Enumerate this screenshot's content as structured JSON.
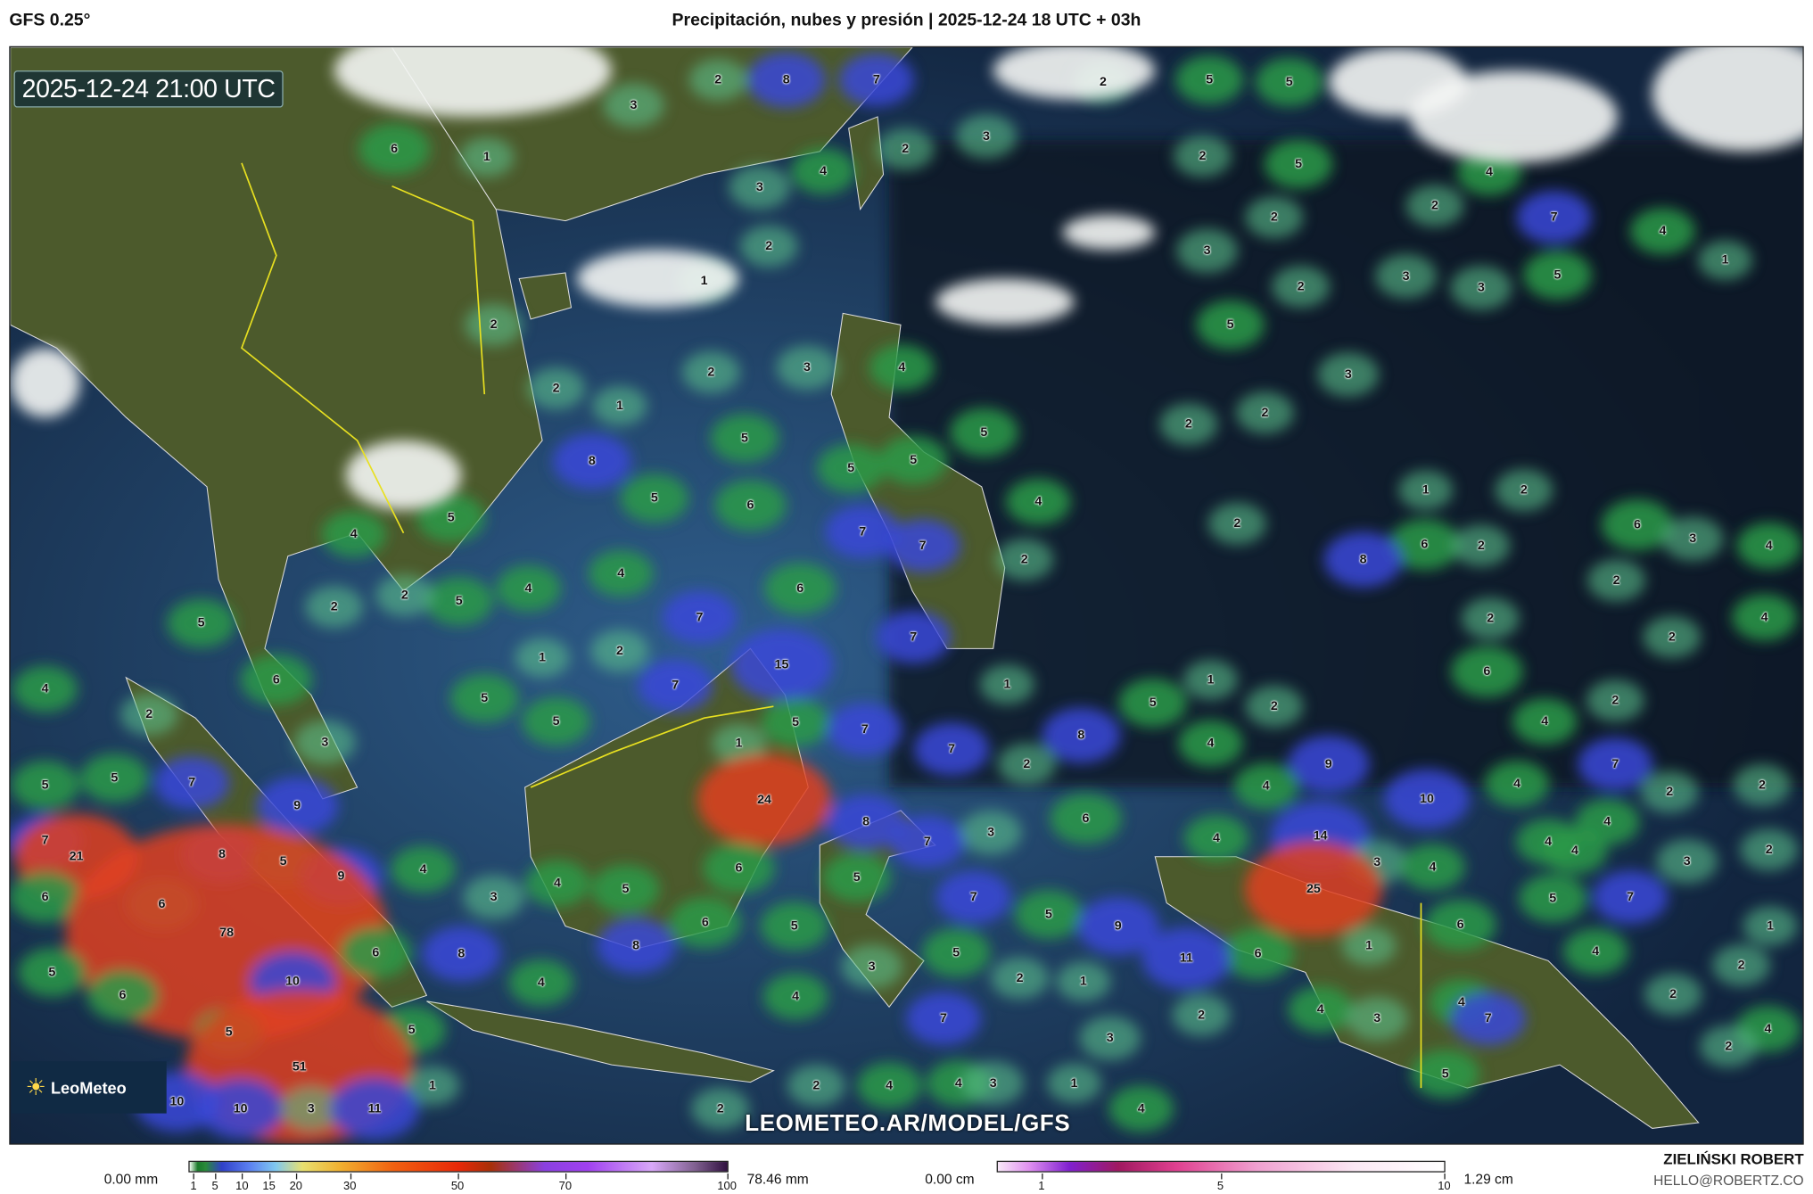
{
  "header": {
    "model": "GFS 0.25°",
    "title": "Precipitación, nubes y presión | 2025-12-24 18 UTC + 03h"
  },
  "map": {
    "valid_time": "2025-12-24 21:00 UTC",
    "watermark": "LEOMETEO.AR/MODEL/GFS",
    "logo_text": "LeoMeteo",
    "colors": {
      "ocean": "#1e3f66",
      "land": "#4a5a2a",
      "precip": "#2e9a4a",
      "heavy_precip": "#3040d0",
      "cloud": "#ffffff",
      "border_highlight": "#e8e020"
    },
    "precip_labels": [
      "3",
      "2",
      "8",
      "7",
      "2",
      "5",
      "5",
      "1",
      "6",
      "4",
      "2",
      "3",
      "2",
      "5",
      "3",
      "2",
      "1",
      "2",
      "2",
      "4",
      "7",
      "4",
      "1",
      "3",
      "2",
      "3",
      "3",
      "5",
      "2",
      "5",
      "2",
      "3",
      "4",
      "3",
      "2",
      "1",
      "2",
      "2",
      "5",
      "5",
      "8",
      "5",
      "6",
      "5",
      "5",
      "4",
      "1",
      "2",
      "5",
      "4",
      "7",
      "7",
      "2",
      "6",
      "3",
      "4",
      "6",
      "2",
      "8",
      "2",
      "4",
      "4",
      "5",
      "2",
      "6",
      "2",
      "4",
      "2",
      "5",
      "7",
      "7",
      "2",
      "2",
      "2",
      "1",
      "6",
      "6",
      "7",
      "15",
      "4",
      "1",
      "2",
      "1",
      "5",
      "5",
      "2",
      "5",
      "5",
      "7",
      "2",
      "4",
      "8",
      "3",
      "1",
      "4",
      "7",
      "2",
      "9",
      "7",
      "5",
      "5",
      "4",
      "4",
      "7",
      "2",
      "2",
      "9",
      "24",
      "10",
      "8",
      "7",
      "21",
      "8",
      "3",
      "6",
      "4",
      "4",
      "14",
      "4",
      "4",
      "7",
      "2",
      "5",
      "6",
      "9",
      "4",
      "3",
      "4",
      "3",
      "4",
      "5",
      "5",
      "6",
      "3",
      "7",
      "25",
      "7",
      "5",
      "6",
      "6",
      "5",
      "9",
      "78",
      "6",
      "5",
      "1",
      "6",
      "1",
      "8",
      "8",
      "6",
      "5",
      "11",
      "4",
      "2",
      "3",
      "5",
      "10",
      "2",
      "1",
      "4",
      "6",
      "2",
      "4",
      "4",
      "4",
      "3",
      "2",
      "7",
      "5",
      "5",
      "7",
      "4",
      "3",
      "2",
      "51",
      "5",
      "1",
      "2",
      "4",
      "10",
      "10",
      "3",
      "11",
      "2",
      "4",
      "3",
      "1",
      "4"
    ]
  },
  "legend": {
    "precip": {
      "min_label": "0.00 mm",
      "max_label": "78.46 mm",
      "ticks": [
        "1",
        "5",
        "10",
        "15",
        "20",
        "30",
        "50",
        "70",
        "100"
      ],
      "tick_values": [
        1,
        5,
        10,
        15,
        20,
        30,
        50,
        70,
        100
      ]
    },
    "snow": {
      "min_label": "0.00 cm",
      "max_label": "1.29 cm",
      "ticks": [
        "1",
        "5",
        "10"
      ],
      "tick_values": [
        1,
        5,
        10
      ]
    }
  },
  "credits": {
    "author": "ZIELIŃSKI ROBERT",
    "email": "HELLO@ROBERTZ.CO"
  }
}
